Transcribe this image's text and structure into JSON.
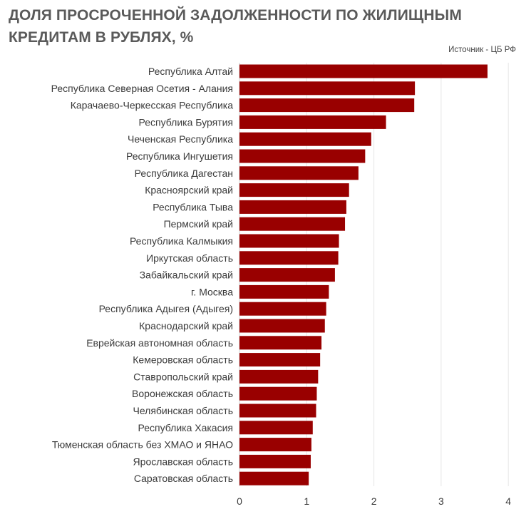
{
  "chart_data": {
    "type": "bar",
    "orientation": "horizontal",
    "title": "ДОЛЯ ПРОСРОЧЕННОЙ ЗАДОЛЖЕННОСТИ ПО ЖИЛИЩНЫМ КРЕДИТАМ В РУБЛЯХ, %",
    "source": "Источник  - ЦБ РФ",
    "categories": [
      "Республика Алтай",
      "Республика Северная Осетия - Алания",
      "Карачаево-Черкесская Республика",
      "Республика Бурятия",
      "Чеченская Республика",
      "Республика Ингушетия",
      "Республика Дагестан",
      "Красноярский край",
      "Республика Тыва",
      "Пермский край",
      "Республика Калмыкия",
      "Иркутская область",
      "Забайкальский край",
      "г. Москва",
      "Республика Адыгея (Адыгея)",
      "Краснодарский край",
      "Еврейская автономная область",
      "Кемеровская область",
      "Ставропольский край",
      "Воронежская область",
      "Челябинская область",
      "Республика Хакасия",
      "Тюменская область без ХМАО и ЯНАО",
      "Ярославская область",
      "Саратовская область"
    ],
    "values": [
      3.69,
      2.61,
      2.6,
      2.18,
      1.96,
      1.87,
      1.77,
      1.63,
      1.59,
      1.57,
      1.48,
      1.47,
      1.42,
      1.33,
      1.29,
      1.27,
      1.22,
      1.2,
      1.17,
      1.15,
      1.14,
      1.09,
      1.07,
      1.06,
      1.03
    ],
    "xlim": [
      0,
      4
    ],
    "xticks": [
      "0",
      "1",
      "2",
      "3",
      "4"
    ],
    "grid": "vertical",
    "bar_color": "#990000",
    "grid_color": "#e6e6e6"
  }
}
